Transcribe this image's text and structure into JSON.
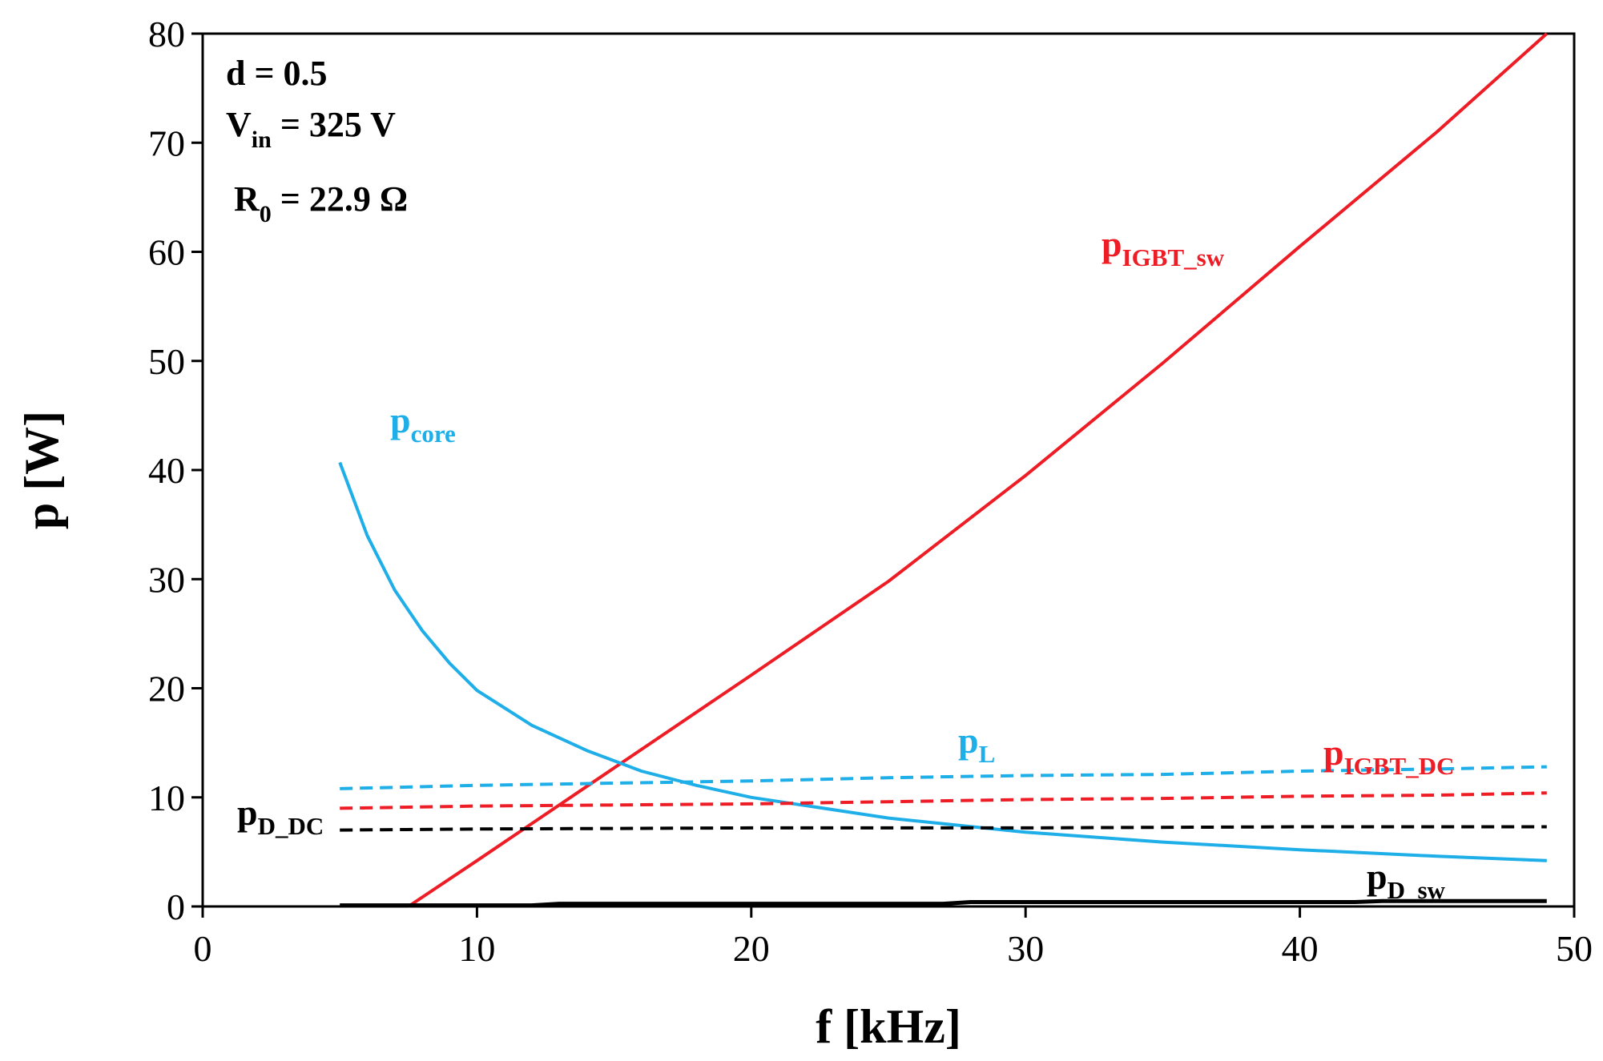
{
  "chart_data": {
    "type": "line",
    "title": "",
    "xlabel": "f [kHz]",
    "ylabel": "p [W]",
    "xlim": [
      0,
      50
    ],
    "ylim": [
      0,
      80
    ],
    "xticks": [
      0,
      10,
      20,
      30,
      40,
      50
    ],
    "yticks": [
      0,
      10,
      20,
      30,
      40,
      50,
      60,
      70,
      80
    ],
    "grid": false,
    "annotations": {
      "d": {
        "main": "d = 0.5"
      },
      "vin": {
        "main": "V",
        "sub": "in",
        "rest": " = 325 V"
      },
      "r0": {
        "main": "R",
        "sub": "0",
        "rest": " = 22.9 Ω"
      }
    },
    "series": [
      {
        "name": "pIGBT_sw",
        "label_main": "p",
        "label_sub": "IGBT_sw",
        "color": "#ee1c25",
        "style": "solid",
        "x": [
          7.5,
          10,
          15,
          20,
          25,
          30,
          35,
          40,
          45,
          49
        ],
        "values": [
          0,
          4.2,
          12.7,
          21.2,
          29.8,
          39.5,
          49.8,
          60.5,
          71.0,
          80.0
        ]
      },
      {
        "name": "pcore",
        "label_main": "p",
        "label_sub": "core",
        "color": "#1eaee8",
        "style": "solid",
        "x": [
          5,
          6,
          7,
          8,
          9,
          10,
          12,
          14,
          16,
          18,
          20,
          25,
          30,
          35,
          40,
          45,
          49
        ],
        "values": [
          40.7,
          34.0,
          29.0,
          25.3,
          22.3,
          19.8,
          16.6,
          14.3,
          12.4,
          11.1,
          10.0,
          8.1,
          6.8,
          5.9,
          5.2,
          4.6,
          4.2
        ]
      },
      {
        "name": "pL",
        "label_main": "p",
        "label_sub": "L",
        "color": "#1eaee8",
        "style": "dashed",
        "x": [
          5,
          10,
          15,
          20,
          25,
          30,
          35,
          40,
          45,
          49
        ],
        "values": [
          10.8,
          11.1,
          11.3,
          11.5,
          11.8,
          12.0,
          12.1,
          12.4,
          12.6,
          12.8
        ]
      },
      {
        "name": "pIGBT_DC",
        "label_main": "p",
        "label_sub": "IGBT_DC",
        "color": "#ee1c25",
        "style": "dashed",
        "x": [
          5,
          10,
          15,
          20,
          25,
          30,
          35,
          40,
          45,
          49
        ],
        "values": [
          9.0,
          9.2,
          9.3,
          9.4,
          9.6,
          9.8,
          9.9,
          10.1,
          10.2,
          10.4
        ]
      },
      {
        "name": "pD_DC",
        "label_main": "p",
        "label_sub": "D_DC",
        "color": "#000000",
        "style": "dashed",
        "x": [
          5,
          10,
          20,
          30,
          40,
          49
        ],
        "values": [
          7.0,
          7.1,
          7.2,
          7.2,
          7.3,
          7.3
        ]
      },
      {
        "name": "pD_sw",
        "label_main": "p",
        "label_sub": "D_sw",
        "color": "#000000",
        "style": "solid",
        "x": [
          5,
          12,
          13,
          27,
          28,
          42,
          43,
          49
        ],
        "values": [
          0.1,
          0.1,
          0.25,
          0.25,
          0.4,
          0.4,
          0.5,
          0.5
        ]
      }
    ]
  }
}
